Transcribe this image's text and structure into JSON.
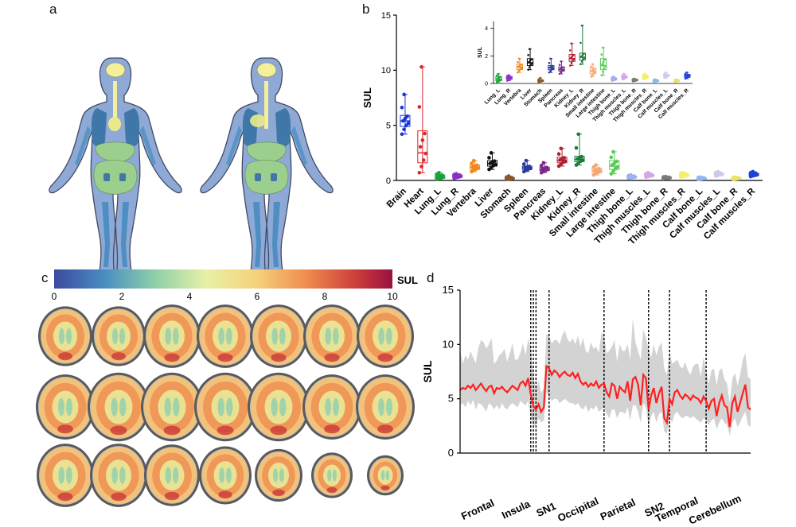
{
  "panels": {
    "a": "a",
    "b": "b",
    "c": "c",
    "d": "d"
  },
  "colors": {
    "body": "#8fa9d6",
    "body_edge": "#404a63",
    "brain": "#f4ef9b",
    "lung": "#3f77a8",
    "liver": "#e9e98c",
    "intestine": "#9ccf8e",
    "bone": "#4e8ec2",
    "grey_band": "#d3d3d3",
    "mean_line": "#ff2020"
  },
  "chart_data": [
    {
      "id": "b-main",
      "type": "box",
      "ylabel": "SUL",
      "ylim": [
        0,
        15
      ],
      "yticks": [
        0,
        5,
        10,
        15
      ],
      "categories": [
        "Brain",
        "Heart",
        "Lung_L",
        "Lung_R",
        "Vertebra",
        "Liver",
        "Stomach",
        "Spleen",
        "Pancreas",
        "Kidney_L",
        "Kidney_R",
        "Small intestine",
        "Large intestine",
        "Thigh bone_L",
        "Thigh muscles_L",
        "Thigh bone_R",
        "Thigh muscles_R",
        "Calf bone_L",
        "Calf muscles_L",
        "Calf bone_R",
        "Calf muscles_R"
      ],
      "colors": [
        "#1a35d6",
        "#e0242a",
        "#1aa33a",
        "#8b2fc9",
        "#f08a1e",
        "#111111",
        "#8a5a2a",
        "#2b3a9e",
        "#7a2a8a",
        "#b02030",
        "#1e7a3a",
        "#f4a872",
        "#55cc55",
        "#9fb0ee",
        "#d3a6e6",
        "#7a7a7a",
        "#f2f06a",
        "#8fb7f0",
        "#d6c6ec",
        "#e8e46a",
        "#2040d8"
      ],
      "box_stats": [
        {
          "min": 4.2,
          "q1": 4.9,
          "median": 5.4,
          "q3": 5.9,
          "max": 7.8
        },
        {
          "min": 0.7,
          "q1": 1.6,
          "median": 2.5,
          "q3": 4.5,
          "max": 10.3
        },
        {
          "min": 0.1,
          "q1": 0.2,
          "median": 0.3,
          "q3": 0.5,
          "max": 0.7
        },
        {
          "min": 0.2,
          "q1": 0.3,
          "median": 0.4,
          "q3": 0.5,
          "max": 0.6
        },
        {
          "min": 0.8,
          "q1": 1.0,
          "median": 1.2,
          "q3": 1.4,
          "max": 1.8
        },
        {
          "min": 1.0,
          "q1": 1.3,
          "median": 1.5,
          "q3": 1.8,
          "max": 2.5
        },
        {
          "min": 0.1,
          "q1": 0.15,
          "median": 0.2,
          "q3": 0.25,
          "max": 0.4
        },
        {
          "min": 0.8,
          "q1": 1.0,
          "median": 1.15,
          "q3": 1.3,
          "max": 1.8
        },
        {
          "min": 0.7,
          "q1": 0.9,
          "median": 1.0,
          "q3": 1.2,
          "max": 1.6
        },
        {
          "min": 1.3,
          "q1": 1.6,
          "median": 1.8,
          "q3": 2.1,
          "max": 2.9
        },
        {
          "min": 1.4,
          "q1": 1.7,
          "median": 1.9,
          "q3": 2.2,
          "max": 4.2
        },
        {
          "min": 0.5,
          "q1": 0.7,
          "median": 0.9,
          "q3": 1.1,
          "max": 1.4
        },
        {
          "min": 0.6,
          "q1": 1.0,
          "median": 1.3,
          "q3": 1.8,
          "max": 2.6
        },
        {
          "min": 0.2,
          "q1": 0.25,
          "median": 0.3,
          "q3": 0.4,
          "max": 0.5
        },
        {
          "min": 0.3,
          "q1": 0.4,
          "median": 0.45,
          "q3": 0.55,
          "max": 0.7
        },
        {
          "min": 0.15,
          "q1": 0.2,
          "median": 0.25,
          "q3": 0.3,
          "max": 0.35
        },
        {
          "min": 0.3,
          "q1": 0.4,
          "median": 0.5,
          "q3": 0.6,
          "max": 0.7
        },
        {
          "min": 0.1,
          "q1": 0.15,
          "median": 0.2,
          "q3": 0.25,
          "max": 0.3
        },
        {
          "min": 0.4,
          "q1": 0.5,
          "median": 0.55,
          "q3": 0.65,
          "max": 0.8
        },
        {
          "min": 0.1,
          "q1": 0.15,
          "median": 0.2,
          "q3": 0.25,
          "max": 0.3
        },
        {
          "min": 0.35,
          "q1": 0.45,
          "median": 0.55,
          "q3": 0.65,
          "max": 0.8
        }
      ]
    },
    {
      "id": "b-inset",
      "type": "box",
      "ylabel": "SUL",
      "ylim": [
        0,
        4.5
      ],
      "yticks": [
        0,
        2,
        4
      ],
      "categories": [
        "Lung_L",
        "Lung_R",
        "Vertebra",
        "Liver",
        "Stomach",
        "Spleen",
        "Pancreas",
        "Kidney_L",
        "Kidney_R",
        "Small intestine",
        "Large intestine",
        "Thigh bone_L",
        "Thigh muscles_L",
        "Thigh bone_R",
        "Thigh muscles_R",
        "Calf bone_L",
        "Calf muscles_L",
        "Calf bone_R",
        "Calf muscles_R"
      ],
      "colors": [
        "#1aa33a",
        "#8b2fc9",
        "#f08a1e",
        "#111111",
        "#8a5a2a",
        "#2b3a9e",
        "#7a2a8a",
        "#b02030",
        "#1e7a3a",
        "#f4a872",
        "#55cc55",
        "#9fb0ee",
        "#d3a6e6",
        "#7a7a7a",
        "#f2f06a",
        "#8fb7f0",
        "#d6c6ec",
        "#e8e46a",
        "#2040d8"
      ],
      "box_stats": [
        {
          "min": 0.1,
          "q1": 0.2,
          "median": 0.3,
          "q3": 0.5,
          "max": 0.7
        },
        {
          "min": 0.2,
          "q1": 0.3,
          "median": 0.4,
          "q3": 0.5,
          "max": 0.6
        },
        {
          "min": 0.8,
          "q1": 1.0,
          "median": 1.2,
          "q3": 1.4,
          "max": 1.8
        },
        {
          "min": 1.0,
          "q1": 1.3,
          "median": 1.5,
          "q3": 1.8,
          "max": 2.5
        },
        {
          "min": 0.1,
          "q1": 0.15,
          "median": 0.2,
          "q3": 0.25,
          "max": 0.4
        },
        {
          "min": 0.8,
          "q1": 1.0,
          "median": 1.15,
          "q3": 1.3,
          "max": 1.8
        },
        {
          "min": 0.7,
          "q1": 0.9,
          "median": 1.0,
          "q3": 1.2,
          "max": 1.6
        },
        {
          "min": 1.3,
          "q1": 1.6,
          "median": 1.8,
          "q3": 2.1,
          "max": 2.9
        },
        {
          "min": 1.4,
          "q1": 1.7,
          "median": 1.9,
          "q3": 2.2,
          "max": 4.2
        },
        {
          "min": 0.5,
          "q1": 0.7,
          "median": 0.9,
          "q3": 1.1,
          "max": 1.4
        },
        {
          "min": 0.6,
          "q1": 1.0,
          "median": 1.3,
          "q3": 1.8,
          "max": 2.6
        },
        {
          "min": 0.2,
          "q1": 0.25,
          "median": 0.3,
          "q3": 0.4,
          "max": 0.5
        },
        {
          "min": 0.3,
          "q1": 0.4,
          "median": 0.45,
          "q3": 0.55,
          "max": 0.7
        },
        {
          "min": 0.15,
          "q1": 0.2,
          "median": 0.25,
          "q3": 0.3,
          "max": 0.35
        },
        {
          "min": 0.3,
          "q1": 0.4,
          "median": 0.5,
          "q3": 0.6,
          "max": 0.7
        },
        {
          "min": 0.1,
          "q1": 0.15,
          "median": 0.2,
          "q3": 0.25,
          "max": 0.3
        },
        {
          "min": 0.4,
          "q1": 0.5,
          "median": 0.55,
          "q3": 0.65,
          "max": 0.8
        },
        {
          "min": 0.1,
          "q1": 0.15,
          "median": 0.2,
          "q3": 0.25,
          "max": 0.3
        },
        {
          "min": 0.35,
          "q1": 0.45,
          "median": 0.55,
          "q3": 0.65,
          "max": 0.8
        }
      ]
    },
    {
      "id": "c-colorbar",
      "type": "heatmap",
      "colorbar_label": "SUL",
      "range": [
        0,
        10
      ],
      "ticks": [
        0,
        2,
        4,
        6,
        8,
        10
      ],
      "rows": 3,
      "cols": 7
    },
    {
      "id": "d-profile",
      "type": "line",
      "ylabel": "SUL",
      "ylim": [
        0,
        15
      ],
      "yticks": [
        0,
        5,
        10,
        15
      ],
      "regions": [
        "Frontal",
        "Insula",
        "SN1",
        "Occipital",
        "Parietal",
        "SN2",
        "Temporal",
        "Cerebellum"
      ],
      "series": [
        {
          "values": [
            5.8,
            6.0,
            5.9,
            6.2,
            6.0,
            6.3,
            5.8,
            6.1,
            6.4,
            6.0,
            5.7,
            6.1,
            6.2,
            5.5,
            6.0,
            5.9,
            6.1,
            5.8,
            5.6,
            5.9,
            6.2,
            6.0,
            5.8,
            6.4,
            6.6,
            6.2,
            6.9,
            5.4,
            4.3,
            4.0,
            4.5,
            3.8,
            4.2,
            8.0,
            7.8,
            7.2,
            7.6,
            7.4,
            7.0,
            7.3,
            7.5,
            7.2,
            7.1,
            7.4,
            6.9,
            7.3,
            6.6,
            6.3,
            6.5,
            6.1,
            6.4,
            6.2,
            6.6,
            6.0,
            6.3,
            6.4,
            5.6,
            5.2,
            6.4,
            6.2,
            5.0,
            6.1,
            5.8,
            5.6,
            6.6,
            4.8,
            6.8,
            7.0,
            6.3,
            4.4,
            7.2,
            6.9,
            4.0,
            5.3,
            6.0,
            4.6,
            5.5,
            6.1,
            3.2,
            2.8,
            5.0,
            4.5,
            5.6,
            5.8,
            5.3,
            5.0,
            5.4,
            5.2,
            4.9,
            5.3,
            5.1,
            5.0,
            4.6,
            5.2,
            4.8,
            4.1,
            4.8,
            5.0,
            3.4,
            4.6,
            5.3,
            4.4,
            4.2,
            2.4,
            4.6,
            5.2,
            3.8,
            4.6,
            5.5,
            6.3,
            4.2,
            4.0
          ]
        }
      ],
      "band_upper": [
        9.6,
        8.2,
        9.0,
        8.6,
        9.4,
        8.8,
        8.3,
        9.7,
        10.4,
        10.2,
        9.6,
        10.0,
        10.6,
        8.2,
        8.5,
        9.0,
        9.2,
        9.6,
        8.4,
        9.2,
        10.1,
        8.6,
        8.6,
        9.2,
        10.1,
        9.0,
        10.5,
        9.8,
        7.0,
        6.0,
        6.6,
        5.5,
        6.0,
        11.0,
        10.8,
        10.1,
        10.4,
        10.4,
        10.0,
        10.8,
        11.3,
        10.5,
        10.2,
        10.6,
        10.0,
        10.8,
        9.8,
        10.6,
        9.4,
        9.2,
        10.2,
        9.6,
        9.8,
        9.2,
        11.1,
        10.8,
        9.2,
        9.4,
        9.8,
        10.4,
        8.4,
        10.0,
        9.4,
        9.4,
        10.0,
        8.6,
        12.4,
        10.2,
        9.4,
        8.6,
        11.4,
        10.6,
        9.6,
        8.8,
        10.0,
        9.0,
        9.8,
        10.2,
        7.8,
        7.2,
        9.4,
        8.2,
        8.4,
        8.6,
        8.0,
        7.8,
        8.4,
        7.6,
        7.2,
        8.0,
        8.2,
        8.2,
        7.0,
        8.8,
        7.6,
        6.4,
        7.6,
        7.8,
        6.2,
        7.6,
        7.8,
        6.8,
        6.4,
        4.6,
        6.8,
        7.4,
        6.2,
        7.2,
        8.6,
        9.2,
        7.0,
        6.8
      ],
      "band_lower": [
        4.4,
        4.6,
        4.2,
        4.8,
        4.4,
        4.9,
        4.0,
        4.6,
        4.5,
        4.2,
        3.8,
        4.6,
        4.4,
        4.0,
        4.4,
        4.0,
        4.6,
        4.2,
        4.0,
        4.4,
        4.6,
        4.4,
        4.2,
        4.8,
        4.6,
        4.4,
        4.8,
        3.4,
        2.6,
        2.6,
        3.2,
        2.8,
        3.0,
        5.6,
        5.2,
        4.8,
        5.0,
        5.0,
        4.6,
        4.8,
        5.0,
        4.8,
        4.6,
        4.6,
        4.4,
        4.6,
        4.2,
        4.0,
        4.4,
        3.8,
        4.2,
        4.0,
        4.4,
        3.8,
        4.0,
        4.2,
        3.6,
        3.2,
        4.0,
        4.0,
        3.2,
        3.8,
        3.8,
        3.6,
        4.2,
        3.0,
        4.4,
        4.4,
        3.8,
        2.8,
        4.6,
        4.2,
        2.4,
        3.4,
        3.8,
        2.8,
        3.6,
        3.8,
        2.0,
        1.8,
        3.2,
        2.8,
        3.6,
        3.8,
        3.4,
        3.2,
        3.4,
        3.4,
        3.2,
        3.4,
        3.2,
        3.0,
        2.8,
        3.2,
        3.0,
        2.6,
        3.0,
        3.2,
        2.2,
        2.8,
        3.2,
        2.8,
        2.6,
        1.6,
        2.8,
        3.2,
        2.4,
        2.8,
        3.4,
        3.8,
        2.6,
        2.4
      ],
      "dividers": [
        27,
        28,
        29,
        34,
        55,
        72,
        80,
        94
      ]
    }
  ]
}
